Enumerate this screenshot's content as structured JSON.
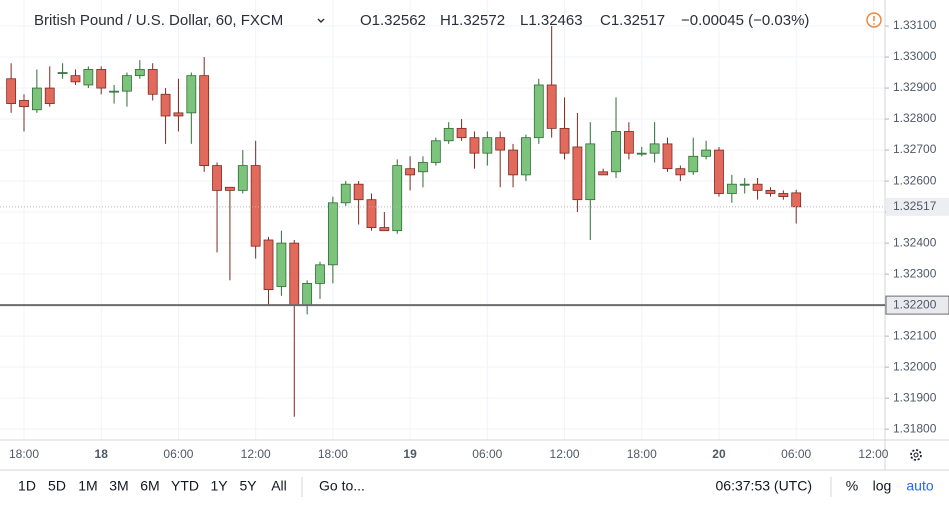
{
  "header": {
    "symbol": "British Pound / U.S. Dollar, 60, FXCM",
    "ohlc": [
      "O1.32562",
      "H1.32572",
      "L1.32463",
      "C1.32517",
      "−0.00045 (−0.03%)"
    ]
  },
  "toolbar": {
    "ranges": [
      "1D",
      "5D",
      "1M",
      "3M",
      "6M",
      "YTD",
      "1Y",
      "5Y",
      "All"
    ],
    "goto": "Go to...",
    "clock": "06:37:53 (UTC)",
    "options": [
      "%",
      "log",
      "auto"
    ]
  },
  "chart_data": {
    "type": "candlestick",
    "x": [
      -1,
      0,
      1,
      2,
      3,
      4,
      5,
      6,
      7,
      8,
      9,
      10,
      11,
      12,
      13,
      14,
      15,
      16,
      17,
      18,
      19,
      20,
      21,
      22,
      23,
      24,
      25,
      26,
      27,
      28,
      29,
      30,
      31,
      32,
      33,
      34,
      35,
      36,
      37,
      38,
      39,
      40,
      41,
      42,
      43,
      44,
      45,
      46,
      47,
      48,
      49,
      50,
      51,
      52,
      53,
      54,
      55,
      56,
      57,
      58,
      59,
      60
    ],
    "open": [
      1.3293,
      1.3286,
      1.3283,
      1.329,
      1.3295,
      1.3294,
      1.3291,
      1.3296,
      1.3289,
      1.3289,
      1.3294,
      1.3296,
      1.3288,
      1.3282,
      1.3282,
      1.3294,
      1.3265,
      1.3258,
      1.3257,
      1.3265,
      1.3241,
      1.3226,
      1.324,
      1.322,
      1.3227,
      1.3233,
      1.3253,
      1.3259,
      1.3254,
      1.3245,
      1.3244,
      1.3264,
      1.3263,
      1.3266,
      1.3273,
      1.3277,
      1.3274,
      1.3269,
      1.3274,
      1.327,
      1.3262,
      1.3274,
      1.3291,
      1.3277,
      1.3271,
      1.3254,
      1.3263,
      1.3263,
      1.3276,
      1.3269,
      1.3269,
      1.3272,
      1.3264,
      1.3263,
      1.3268,
      1.327,
      1.3256,
      1.3259,
      1.3259,
      1.3257,
      1.3256,
      1.32562
    ],
    "high": [
      1.3298,
      1.3288,
      1.3296,
      1.3297,
      1.3298,
      1.3296,
      1.3297,
      1.3297,
      1.3291,
      1.3295,
      1.3299,
      1.3298,
      1.329,
      1.3293,
      1.3295,
      1.33,
      1.3266,
      1.3258,
      1.327,
      1.3273,
      1.3242,
      1.3244,
      1.3241,
      1.3228,
      1.3234,
      1.3255,
      1.326,
      1.326,
      1.3256,
      1.325,
      1.3267,
      1.3268,
      1.3268,
      1.3274,
      1.3279,
      1.328,
      1.3276,
      1.3276,
      1.3276,
      1.3272,
      1.3275,
      1.3293,
      1.331,
      1.3287,
      1.3282,
      1.3279,
      1.3264,
      1.3287,
      1.3279,
      1.3271,
      1.3279,
      1.3274,
      1.3265,
      1.3274,
      1.3273,
      1.3271,
      1.3262,
      1.3261,
      1.3261,
      1.3258,
      1.3257,
      1.32572
    ],
    "low": [
      1.3282,
      1.3276,
      1.3282,
      1.3284,
      1.3293,
      1.3291,
      1.329,
      1.3288,
      1.3285,
      1.3284,
      1.3293,
      1.3286,
      1.3272,
      1.3276,
      1.3272,
      1.3263,
      1.3237,
      1.3228,
      1.3256,
      1.3235,
      1.322,
      1.3223,
      1.3184,
      1.3217,
      1.3222,
      1.3227,
      1.3252,
      1.3246,
      1.3244,
      1.3244,
      1.3243,
      1.3257,
      1.3258,
      1.3265,
      1.3272,
      1.3273,
      1.3264,
      1.3265,
      1.3258,
      1.3258,
      1.326,
      1.3272,
      1.3274,
      1.3267,
      1.325,
      1.3241,
      1.3262,
      1.3261,
      1.3267,
      1.3268,
      1.3266,
      1.3263,
      1.326,
      1.3262,
      1.3267,
      1.3255,
      1.3253,
      1.3256,
      1.3254,
      1.3255,
      1.3254,
      1.32463
    ],
    "close": [
      1.3285,
      1.3284,
      1.329,
      1.3285,
      1.3295,
      1.3292,
      1.3296,
      1.329,
      1.3289,
      1.3294,
      1.3296,
      1.3288,
      1.3281,
      1.3281,
      1.3294,
      1.3265,
      1.3257,
      1.3257,
      1.3265,
      1.3239,
      1.3225,
      1.324,
      1.322,
      1.3227,
      1.3233,
      1.3253,
      1.3259,
      1.3254,
      1.3245,
      1.3244,
      1.3265,
      1.3262,
      1.3266,
      1.3273,
      1.3277,
      1.3274,
      1.3269,
      1.3274,
      1.327,
      1.3262,
      1.3274,
      1.3291,
      1.3277,
      1.3269,
      1.3254,
      1.3272,
      1.3262,
      1.3276,
      1.3269,
      1.3269,
      1.3272,
      1.3264,
      1.3262,
      1.3268,
      1.327,
      1.3256,
      1.3259,
      1.3259,
      1.3257,
      1.3256,
      1.3255,
      1.32517
    ],
    "up_color": "#7cc47c",
    "down_color": "#e26a5c",
    "up_border": "#2f6b36",
    "down_border": "#7a2a22",
    "xlim": [
      -1.865,
      66.9
    ],
    "xticks": [
      {
        "value": 0,
        "label": "18:00"
      },
      {
        "value": 6,
        "label": "18"
      },
      {
        "value": 12,
        "label": "06:00"
      },
      {
        "value": 18,
        "label": "12:00"
      },
      {
        "value": 24,
        "label": "18:00"
      },
      {
        "value": 30,
        "label": "19"
      },
      {
        "value": 36,
        "label": "06:00"
      },
      {
        "value": 42,
        "label": "12:00"
      },
      {
        "value": 48,
        "label": "18:00"
      },
      {
        "value": 54,
        "label": "20"
      },
      {
        "value": 60,
        "label": "06:00"
      },
      {
        "value": 66,
        "label": "12:00"
      }
    ],
    "ylim": [
      1.31765,
      1.33184
    ],
    "yticks": [
      {
        "value": 1.331,
        "label": "1.33100"
      },
      {
        "value": 1.33,
        "label": "1.33000"
      },
      {
        "value": 1.329,
        "label": "1.32900"
      },
      {
        "value": 1.328,
        "label": "1.32800"
      },
      {
        "value": 1.327,
        "label": "1.32700"
      },
      {
        "value": 1.326,
        "label": "1.32600"
      },
      {
        "value": 1.325,
        "label": "1.32500"
      },
      {
        "value": 1.324,
        "label": "1.32400"
      },
      {
        "value": 1.323,
        "label": "1.32300"
      },
      {
        "value": 1.322,
        "label": "1.32200"
      },
      {
        "value": 1.321,
        "label": "1.32100"
      },
      {
        "value": 1.32,
        "label": "1.32000"
      },
      {
        "value": 1.319,
        "label": "1.31900"
      },
      {
        "value": 1.318,
        "label": "1.31800"
      }
    ],
    "grid": true,
    "hline": {
      "value": 1.322,
      "label": "1.32200",
      "color": "#6b6b6b"
    },
    "last_price": {
      "value": 1.32517,
      "label": "1.32517"
    }
  }
}
